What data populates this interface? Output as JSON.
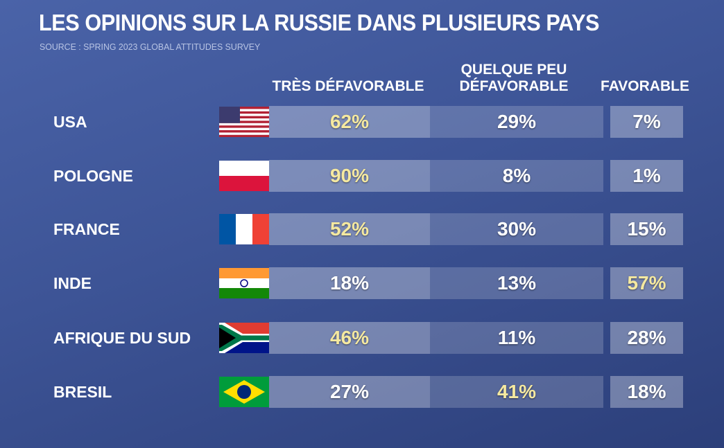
{
  "header": {
    "title": "LES OPINIONS SUR LA RUSSIE DANS PLUSIEURS PAYS",
    "source": "SOURCE : SPRING 2023 GLOBAL ATTITUDES SURVEY"
  },
  "table": {
    "columns": [
      "TRÈS DÉFAVORABLE",
      "QUELQUE PEU DÉFAVORABLE",
      "FAVORABLE"
    ],
    "rows": [
      {
        "country": "USA",
        "values": [
          "62%",
          "29%",
          "7%"
        ]
      },
      {
        "country": "POLOGNE",
        "values": [
          "90%",
          "8%",
          "1%"
        ]
      },
      {
        "country": "FRANCE",
        "values": [
          "52%",
          "30%",
          "15%"
        ]
      },
      {
        "country": "INDE",
        "values": [
          "18%",
          "13%",
          "57%"
        ]
      },
      {
        "country": "AFRIQUE DU SUD",
        "values": [
          "46%",
          "11%",
          "28%"
        ]
      },
      {
        "country": "BRESIL",
        "values": [
          "27%",
          "41%",
          "18%"
        ]
      }
    ]
  }
}
